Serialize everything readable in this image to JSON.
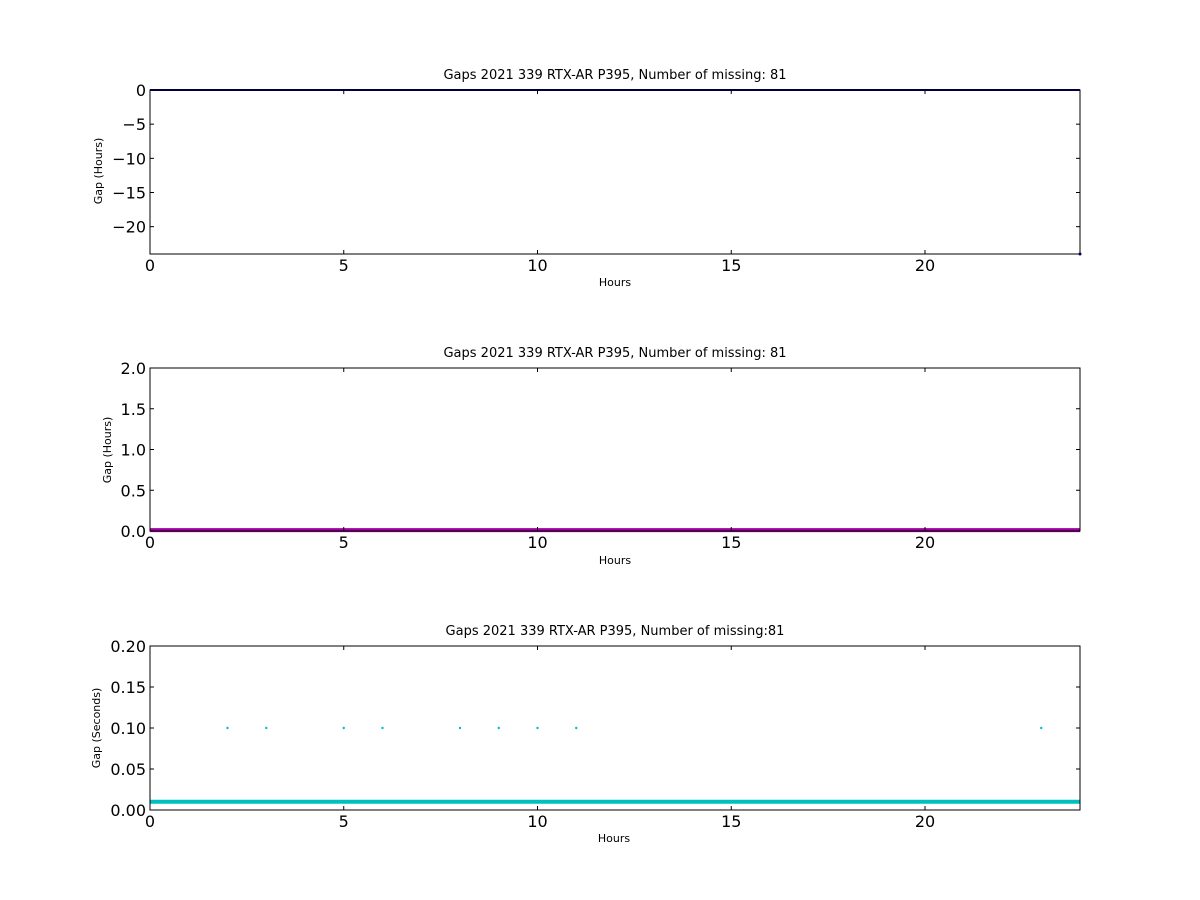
{
  "chart_data": [
    {
      "type": "line",
      "title": "Gaps 2021 339 RTX-AR  P395, Number of missing: 81",
      "xlabel": "Hours",
      "ylabel": "Gap (Hours)",
      "xlim": [
        0,
        24
      ],
      "ylim": [
        -24,
        0
      ],
      "xticks": [
        "0",
        "5",
        "10",
        "15",
        "20"
      ],
      "yticks": [
        "0",
        "−5",
        "−10",
        "−15",
        "−20"
      ],
      "grid": false,
      "series": [
        {
          "color": "#000080",
          "x": [
            0,
            24
          ],
          "y": [
            0,
            0
          ]
        },
        {
          "color": "#000080",
          "x": [
            24
          ],
          "y": [
            -24
          ]
        }
      ]
    },
    {
      "type": "line",
      "title": "Gaps 2021 339 RTX-AR  P395, Number of missing: 81",
      "xlabel": "Hours",
      "ylabel": "Gap (Hours)",
      "xlim": [
        0,
        24
      ],
      "ylim": [
        0,
        2
      ],
      "xticks": [
        "0",
        "5",
        "10",
        "15",
        "20"
      ],
      "yticks": [
        "0.0",
        "0.5",
        "1.0",
        "1.5",
        "2.0"
      ],
      "grid": false,
      "series": [
        {
          "color": "#a000a0",
          "x": [
            0,
            24
          ],
          "y": [
            0.01,
            0.01
          ]
        }
      ]
    },
    {
      "type": "scatter",
      "title": "Gaps 2021 339 RTX-AR  P395, Number of missing:81",
      "xlabel": "Hours",
      "ylabel": "Gap (Seconds)",
      "xlim": [
        0,
        24
      ],
      "ylim": [
        0,
        0.2
      ],
      "xticks": [
        "0",
        "5",
        "10",
        "15",
        "20"
      ],
      "yticks": [
        "0.00",
        "0.05",
        "0.10",
        "0.15",
        "0.20"
      ],
      "grid": false,
      "series": [
        {
          "color": "#00bfbf",
          "x": [
            0,
            24
          ],
          "y": [
            0.01,
            0.01
          ]
        },
        {
          "color": "#00bfbf",
          "x": [
            2,
            3,
            5,
            6,
            8,
            9,
            10,
            11,
            23
          ],
          "y": [
            0.1,
            0.1,
            0.1,
            0.1,
            0.1,
            0.1,
            0.1,
            0.1,
            0.1
          ]
        }
      ]
    }
  ]
}
